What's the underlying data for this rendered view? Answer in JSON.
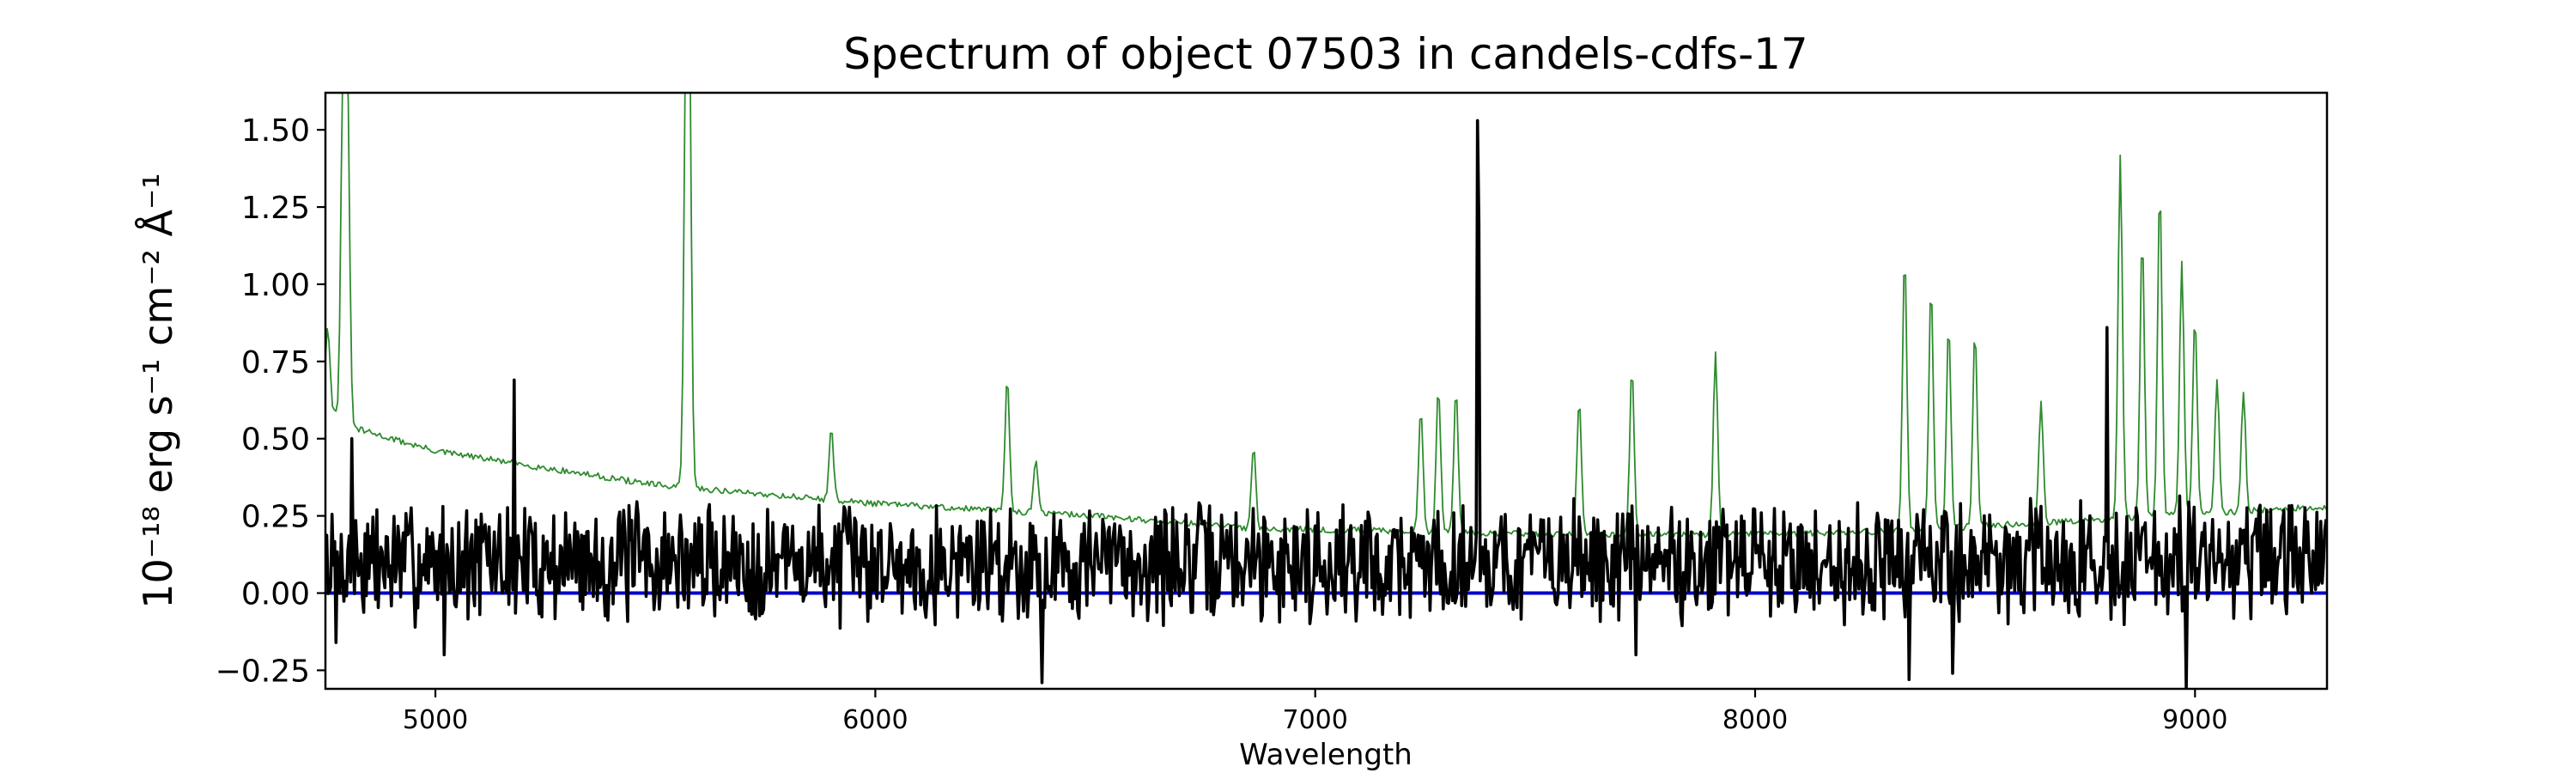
{
  "chart_data": {
    "type": "line",
    "title": "Spectrum of object 07503 in candels-cdfs-17",
    "xlabel": "Wavelength",
    "ylabel": "10⁻¹⁸ erg s⁻¹ cm⁻² Å⁻¹",
    "xlim": [
      4750,
      9300
    ],
    "ylim": [
      -0.31,
      1.62
    ],
    "x_ticks": [
      5000,
      6000,
      7000,
      8000,
      9000
    ],
    "y_ticks": [
      -0.25,
      0.0,
      0.25,
      0.5,
      0.75,
      1.0,
      1.25,
      1.5
    ],
    "y_tick_labels": [
      "−0.25",
      "0.00",
      "0.25",
      "0.50",
      "0.75",
      "1.00",
      "1.25",
      "1.50"
    ],
    "grid": false,
    "legend": "none",
    "series": [
      {
        "role": "error",
        "color": "#2e8b2e",
        "continuum": [
          [
            4760,
            0.6
          ],
          [
            4800,
            0.54
          ],
          [
            5000,
            0.46
          ],
          [
            5500,
            0.35
          ],
          [
            6000,
            0.29
          ],
          [
            6500,
            0.25
          ],
          [
            6850,
            0.21
          ],
          [
            7200,
            0.2
          ],
          [
            7600,
            0.19
          ],
          [
            8000,
            0.19
          ],
          [
            8300,
            0.2
          ],
          [
            8800,
            0.24
          ],
          [
            9300,
            0.28
          ]
        ],
        "peaks": [
          [
            4755,
            0.87
          ],
          [
            4790,
            1.62
          ],
          [
            4800,
            1.62
          ],
          [
            5570,
            1.62
          ],
          [
            5577,
            1.62
          ],
          [
            5900,
            0.53
          ],
          [
            6300,
            0.7
          ],
          [
            6365,
            0.43
          ],
          [
            6860,
            0.48
          ],
          [
            7240,
            0.6
          ],
          [
            7280,
            0.67
          ],
          [
            7320,
            0.66
          ],
          [
            7600,
            0.62
          ],
          [
            7720,
            0.73
          ],
          [
            7910,
            0.78
          ],
          [
            8340,
            1.09
          ],
          [
            8400,
            1.0
          ],
          [
            8440,
            0.87
          ],
          [
            8500,
            0.85
          ],
          [
            8650,
            0.62
          ],
          [
            8830,
            1.41
          ],
          [
            8880,
            1.15
          ],
          [
            8920,
            1.32
          ],
          [
            8970,
            1.07
          ],
          [
            9000,
            0.9
          ],
          [
            9050,
            0.7
          ],
          [
            9110,
            0.65
          ]
        ]
      },
      {
        "role": "flux",
        "color": "#000000",
        "mean": 0.1,
        "noise_amplitude": 0.16,
        "noise_seed": 7,
        "features": [
          [
            4775,
            -0.16
          ],
          [
            4810,
            0.5
          ],
          [
            5180,
            0.69
          ],
          [
            5020,
            -0.2
          ],
          [
            6380,
            -0.29
          ],
          [
            7368,
            1.53
          ],
          [
            7372,
            1.2
          ],
          [
            7730,
            -0.2
          ],
          [
            8350,
            -0.28
          ],
          [
            8450,
            -0.26
          ],
          [
            8800,
            0.86
          ],
          [
            8980,
            -0.31
          ]
        ]
      },
      {
        "role": "zero",
        "color": "#0000cc",
        "constant": 0.0
      }
    ]
  }
}
